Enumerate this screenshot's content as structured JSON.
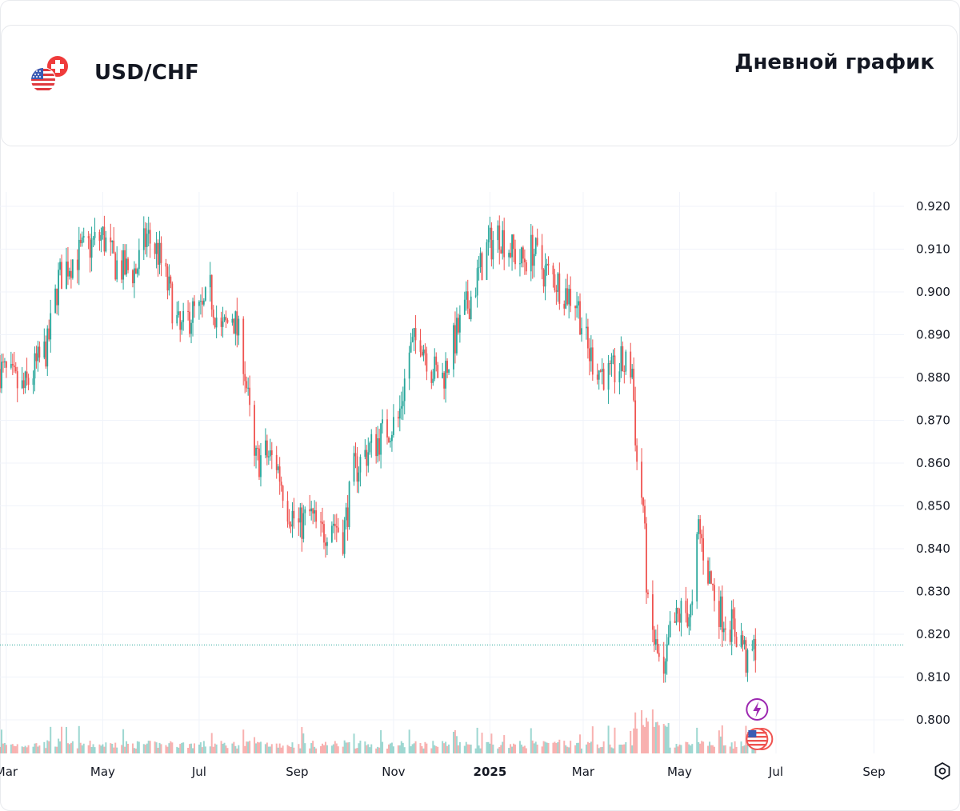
{
  "header": {
    "pair": "USD/CHF",
    "chart_kind": "Дневной график",
    "flags": [
      "us-flag-icon",
      "ch-flag-icon"
    ]
  },
  "colors": {
    "up": "#26a69a",
    "down": "#ef5350",
    "grid": "#f0f3fa",
    "text": "#131722",
    "last_price_line": "#26a69a",
    "event_icon": "#9c27b0"
  },
  "chart_data": {
    "type": "candlestick",
    "title": "USD/CHF",
    "subtitle": "Дневной график",
    "y_axis": {
      "side": "right",
      "ticks": [
        0.92,
        0.91,
        0.9,
        0.89,
        0.88,
        0.87,
        0.86,
        0.85,
        0.84,
        0.83,
        0.82,
        0.81,
        0.8
      ],
      "range": [
        0.7935,
        0.9235
      ]
    },
    "x_axis": {
      "ticks": [
        "Mar",
        "May",
        "Jul",
        "Sep",
        "Nov",
        "2025",
        "Mar",
        "May",
        "Jul",
        "Sep"
      ],
      "tick_dates": [
        "2024-03-01",
        "2024-05-01",
        "2024-07-01",
        "2024-09-01",
        "2024-11-01",
        "2025-01-01",
        "2025-03-01",
        "2025-05-01",
        "2025-07-01",
        "2025-09-01"
      ],
      "range": [
        "2024-02-26",
        "2025-09-20"
      ]
    },
    "grid": true,
    "last_price": 0.8175,
    "volume_panel": true,
    "events": [
      {
        "date": "2025-06-16",
        "icon": "lightning-icon",
        "label": "event"
      },
      {
        "date": "2025-06-16",
        "icon": "us-flag-event-icon",
        "label": "event"
      }
    ],
    "series": [
      {
        "name": "USD/CHF",
        "price_path": [
          [
            "2024-02-26",
            0.882
          ],
          [
            "2024-03-05",
            0.879
          ],
          [
            "2024-03-12",
            0.877
          ],
          [
            "2024-03-19",
            0.882
          ],
          [
            "2024-03-27",
            0.887
          ],
          [
            "2024-04-03",
            0.903
          ],
          [
            "2024-04-10",
            0.907
          ],
          [
            "2024-04-17",
            0.909
          ],
          [
            "2024-04-24",
            0.911
          ],
          [
            "2024-05-01",
            0.913
          ],
          [
            "2024-05-08",
            0.907
          ],
          [
            "2024-05-15",
            0.905
          ],
          [
            "2024-05-22",
            0.905
          ],
          [
            "2024-05-29",
            0.913
          ],
          [
            "2024-06-05",
            0.909
          ],
          [
            "2024-06-12",
            0.9
          ],
          [
            "2024-06-19",
            0.89
          ],
          [
            "2024-06-26",
            0.895
          ],
          [
            "2024-07-03",
            0.895
          ],
          [
            "2024-07-08",
            0.9
          ],
          [
            "2024-07-15",
            0.89
          ],
          [
            "2024-07-22",
            0.895
          ],
          [
            "2024-07-29",
            0.885
          ],
          [
            "2024-08-05",
            0.86
          ],
          [
            "2024-08-12",
            0.862
          ],
          [
            "2024-08-19",
            0.86
          ],
          [
            "2024-08-26",
            0.85
          ],
          [
            "2024-09-02",
            0.845
          ],
          [
            "2024-09-09",
            0.848
          ],
          [
            "2024-09-16",
            0.843
          ],
          [
            "2024-09-23",
            0.847
          ],
          [
            "2024-09-30",
            0.843
          ],
          [
            "2024-10-07",
            0.858
          ],
          [
            "2024-10-14",
            0.862
          ],
          [
            "2024-10-21",
            0.865
          ],
          [
            "2024-10-28",
            0.868
          ],
          [
            "2024-11-04",
            0.87
          ],
          [
            "2024-11-11",
            0.886
          ],
          [
            "2024-11-18",
            0.89
          ],
          [
            "2024-11-25",
            0.882
          ],
          [
            "2024-12-02",
            0.88
          ],
          [
            "2024-12-09",
            0.888
          ],
          [
            "2024-12-16",
            0.895
          ],
          [
            "2024-12-23",
            0.902
          ],
          [
            "2024-12-30",
            0.91
          ],
          [
            "2025-01-07",
            0.914
          ],
          [
            "2025-01-14",
            0.91
          ],
          [
            "2025-01-21",
            0.907
          ],
          [
            "2025-01-28",
            0.91
          ],
          [
            "2025-02-04",
            0.905
          ],
          [
            "2025-02-11",
            0.903
          ],
          [
            "2025-02-18",
            0.9
          ],
          [
            "2025-02-25",
            0.898
          ],
          [
            "2025-03-04",
            0.886
          ],
          [
            "2025-03-11",
            0.882
          ],
          [
            "2025-03-18",
            0.88
          ],
          [
            "2025-03-25",
            0.883
          ],
          [
            "2025-04-01",
            0.882
          ],
          [
            "2025-04-04",
            0.86
          ],
          [
            "2025-04-08",
            0.85
          ],
          [
            "2025-04-11",
            0.825
          ],
          [
            "2025-04-17",
            0.815
          ],
          [
            "2025-04-21",
            0.808
          ],
          [
            "2025-04-25",
            0.82
          ],
          [
            "2025-05-02",
            0.825
          ],
          [
            "2025-05-09",
            0.825
          ],
          [
            "2025-05-13",
            0.845
          ],
          [
            "2025-05-20",
            0.833
          ],
          [
            "2025-05-27",
            0.825
          ],
          [
            "2025-06-03",
            0.822
          ],
          [
            "2025-06-10",
            0.818
          ],
          [
            "2025-06-13",
            0.812
          ],
          [
            "2025-06-18",
            0.8175
          ]
        ]
      }
    ]
  }
}
